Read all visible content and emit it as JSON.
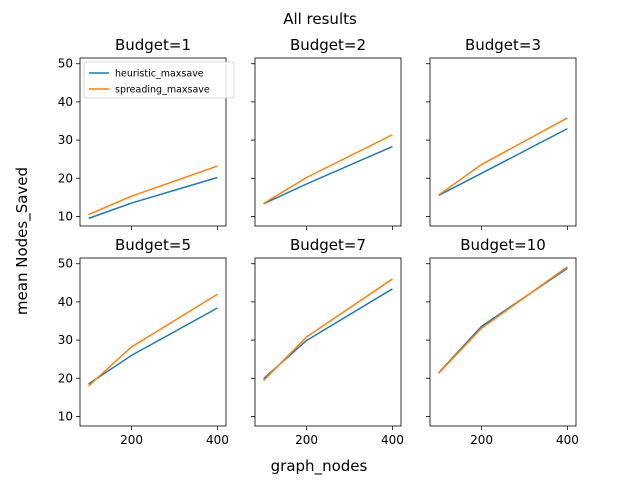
{
  "figure": {
    "suptitle": "All results",
    "xlabel": "graph_nodes",
    "ylabel": "mean Nodes_Saved"
  },
  "colors": {
    "heuristic_maxsave": "#1f77b4",
    "spreading_maxsave": "#ff7f0e"
  },
  "legend": {
    "placement": "top-left of first subplot",
    "items": [
      "heuristic_maxsave",
      "spreading_maxsave"
    ]
  },
  "chart_data": [
    {
      "type": "line",
      "title": "Budget=1",
      "x": [
        100,
        200,
        400
      ],
      "series": [
        {
          "name": "heuristic_maxsave",
          "values": [
            9.5,
            13.5,
            20.2
          ]
        },
        {
          "name": "spreading_maxsave",
          "values": [
            10.5,
            15.3,
            23.2
          ]
        }
      ],
      "xlim": [
        80,
        420
      ],
      "ylim": [
        7.5,
        51.5
      ],
      "yticks": [
        10,
        20,
        30,
        40,
        50
      ],
      "xticks": [
        200,
        400
      ],
      "show_yticklabels": true,
      "show_xticklabels": false,
      "grid": false
    },
    {
      "type": "line",
      "title": "Budget=2",
      "x": [
        100,
        200,
        400
      ],
      "series": [
        {
          "name": "heuristic_maxsave",
          "values": [
            13.3,
            18.5,
            28.3
          ]
        },
        {
          "name": "spreading_maxsave",
          "values": [
            13.4,
            20.2,
            31.4
          ]
        }
      ],
      "xlim": [
        80,
        420
      ],
      "ylim": [
        7.5,
        51.5
      ],
      "yticks": [
        10,
        20,
        30,
        40,
        50
      ],
      "xticks": [
        200,
        400
      ],
      "show_yticklabels": false,
      "show_xticklabels": false,
      "grid": false
    },
    {
      "type": "line",
      "title": "Budget=3",
      "x": [
        100,
        200,
        400
      ],
      "series": [
        {
          "name": "heuristic_maxsave",
          "values": [
            15.5,
            21.3,
            33.0
          ]
        },
        {
          "name": "spreading_maxsave",
          "values": [
            15.6,
            23.6,
            35.8
          ]
        }
      ],
      "xlim": [
        80,
        420
      ],
      "ylim": [
        7.5,
        51.5
      ],
      "yticks": [
        10,
        20,
        30,
        40,
        50
      ],
      "xticks": [
        200,
        400
      ],
      "show_yticklabels": false,
      "show_xticklabels": false,
      "grid": false
    },
    {
      "type": "line",
      "title": "Budget=5",
      "x": [
        100,
        200,
        400
      ],
      "series": [
        {
          "name": "heuristic_maxsave",
          "values": [
            18.5,
            26.0,
            38.4
          ]
        },
        {
          "name": "spreading_maxsave",
          "values": [
            18.0,
            28.2,
            42.0
          ]
        }
      ],
      "xlim": [
        80,
        420
      ],
      "ylim": [
        7.5,
        51.5
      ],
      "yticks": [
        10,
        20,
        30,
        40,
        50
      ],
      "xticks": [
        200,
        400
      ],
      "show_yticklabels": true,
      "show_xticklabels": true,
      "grid": false
    },
    {
      "type": "line",
      "title": "Budget=7",
      "x": [
        100,
        200,
        400
      ],
      "series": [
        {
          "name": "heuristic_maxsave",
          "values": [
            19.9,
            29.9,
            43.4
          ]
        },
        {
          "name": "spreading_maxsave",
          "values": [
            19.4,
            30.8,
            46.0
          ]
        }
      ],
      "xlim": [
        80,
        420
      ],
      "ylim": [
        7.5,
        51.5
      ],
      "yticks": [
        10,
        20,
        30,
        40,
        50
      ],
      "xticks": [
        200,
        400
      ],
      "show_yticklabels": false,
      "show_xticklabels": true,
      "grid": false
    },
    {
      "type": "line",
      "title": "Budget=10",
      "x": [
        100,
        200,
        400
      ],
      "series": [
        {
          "name": "heuristic_maxsave",
          "values": [
            21.4,
            33.6,
            48.8
          ]
        },
        {
          "name": "spreading_maxsave",
          "values": [
            21.3,
            33.1,
            49.2
          ]
        }
      ],
      "xlim": [
        80,
        420
      ],
      "ylim": [
        7.5,
        51.5
      ],
      "yticks": [
        10,
        20,
        30,
        40,
        50
      ],
      "xticks": [
        200,
        400
      ],
      "show_yticklabels": false,
      "show_xticklabels": true,
      "grid": false
    }
  ]
}
